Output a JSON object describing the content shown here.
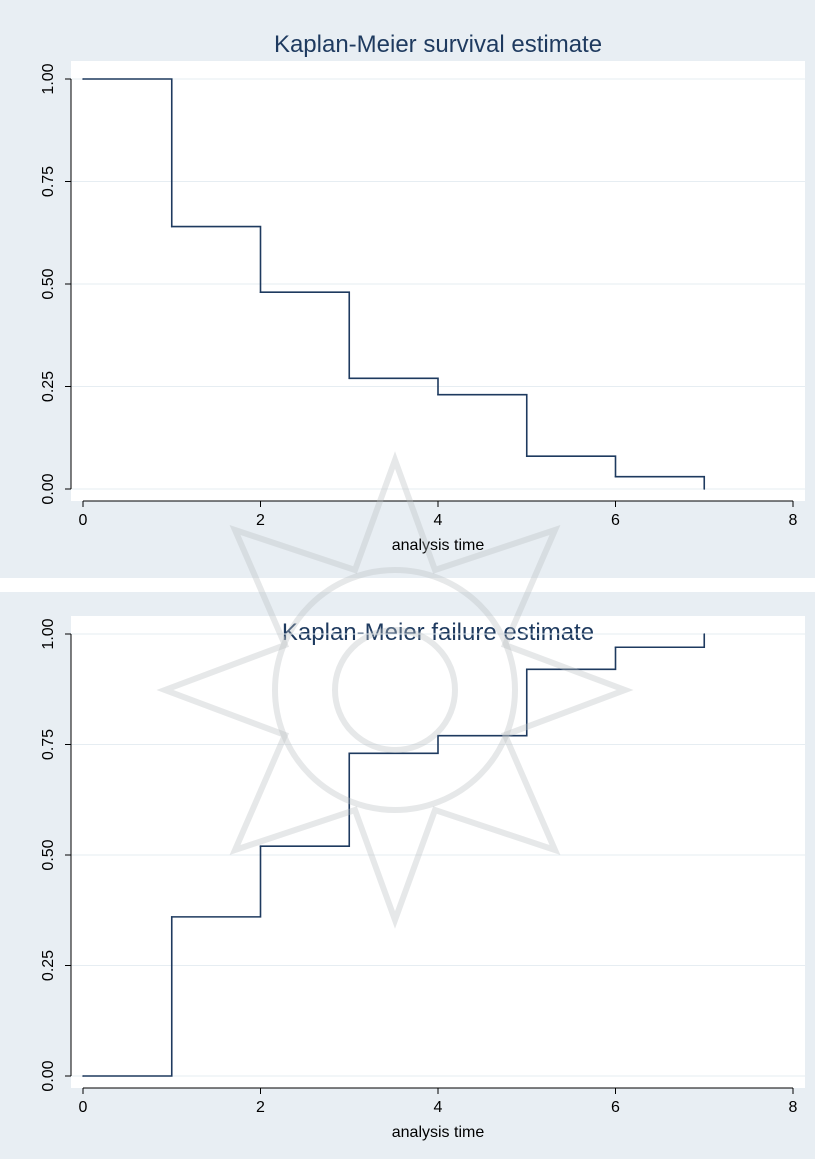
{
  "colors": {
    "line": "#1e3a5f",
    "panel_bg": "#e8eef3",
    "plot_bg": "#ffffff",
    "grid": "#e6edf2"
  },
  "chart_data": [
    {
      "type": "line",
      "step": true,
      "title": "Kaplan-Meier survival estimate",
      "xlabel": "analysis time",
      "ylabel": "",
      "xlim": [
        0,
        8
      ],
      "ylim": [
        0,
        1
      ],
      "xticks": [
        0,
        2,
        4,
        6,
        8
      ],
      "yticks": [
        "0.00",
        "0.25",
        "0.50",
        "0.75",
        "1.00"
      ],
      "grid": true,
      "series": [
        {
          "x": [
            0,
            1,
            2,
            3,
            4,
            5,
            6,
            7
          ],
          "y": [
            1.0,
            0.64,
            0.48,
            0.27,
            0.23,
            0.08,
            0.03,
            0.0
          ]
        }
      ]
    },
    {
      "type": "line",
      "step": true,
      "title": "Kaplan-Meier failure estimate",
      "xlabel": "analysis time",
      "ylabel": "",
      "xlim": [
        0,
        8
      ],
      "ylim": [
        0,
        1
      ],
      "xticks": [
        0,
        2,
        4,
        6,
        8
      ],
      "yticks": [
        "0.00",
        "0.25",
        "0.50",
        "0.75",
        "1.00"
      ],
      "grid": true,
      "series": [
        {
          "x": [
            0,
            1,
            2,
            3,
            4,
            5,
            6,
            7
          ],
          "y": [
            0.0,
            0.36,
            0.52,
            0.73,
            0.77,
            0.92,
            0.97,
            1.0
          ]
        }
      ]
    }
  ]
}
